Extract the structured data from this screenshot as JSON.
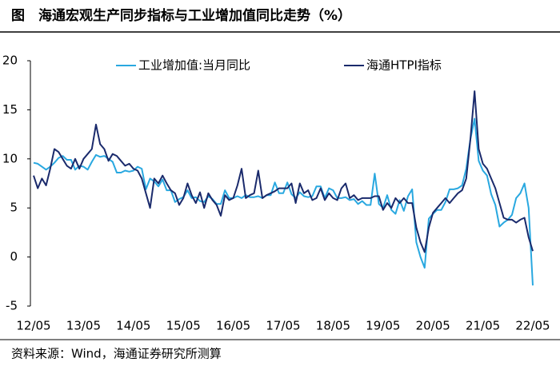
{
  "chart_data": {
    "type": "line",
    "title": "图　海通宏观生产同步指标与工业增加值同比走势（%）",
    "source": "资料来源：Wind，海通证券研究所测算",
    "categories": [
      "12/05",
      null,
      null,
      null,
      null,
      null,
      null,
      null,
      null,
      null,
      null,
      null,
      "13/05",
      null,
      null,
      null,
      null,
      null,
      null,
      null,
      null,
      null,
      null,
      null,
      "14/05",
      null,
      null,
      null,
      null,
      null,
      null,
      null,
      null,
      null,
      null,
      null,
      "15/05",
      null,
      null,
      null,
      null,
      null,
      null,
      null,
      null,
      null,
      null,
      null,
      "16/05",
      null,
      null,
      null,
      null,
      null,
      null,
      null,
      null,
      null,
      null,
      null,
      "17/05",
      null,
      null,
      null,
      null,
      null,
      null,
      null,
      null,
      null,
      null,
      null,
      "18/05",
      null,
      null,
      null,
      null,
      null,
      null,
      null,
      null,
      null,
      null,
      null,
      "19/05",
      null,
      null,
      null,
      null,
      null,
      null,
      null,
      null,
      null,
      null,
      null,
      "20/05",
      null,
      null,
      null,
      null,
      null,
      null,
      null,
      null,
      null,
      null,
      null,
      "21/05",
      null,
      null,
      null,
      null,
      null,
      null,
      null,
      null,
      null,
      null,
      null,
      "22/05"
    ],
    "series": [
      {
        "name": "工业增加值:当月同比",
        "color": "#29a8e0",
        "values": [
          9.6,
          9.5,
          9.2,
          8.9,
          9.2,
          9.6,
          10.1,
          10.3,
          9.9,
          9.9,
          8.9,
          9.3,
          9.2,
          8.9,
          9.7,
          10.4,
          10.2,
          10.3,
          10.0,
          9.7,
          8.6,
          8.6,
          8.8,
          8.7,
          8.8,
          9.2,
          9.0,
          6.9,
          8.0,
          7.7,
          7.2,
          7.9,
          6.8,
          6.8,
          5.6,
          5.9,
          6.1,
          6.8,
          6.0,
          6.1,
          5.7,
          5.6,
          6.2,
          5.9,
          5.4,
          5.4,
          6.8,
          6.0,
          6.0,
          6.2,
          6.0,
          6.3,
          6.1,
          6.1,
          6.2,
          6.0,
          6.3,
          6.3,
          7.6,
          6.5,
          6.5,
          7.6,
          6.4,
          6.0,
          6.6,
          6.2,
          6.1,
          6.2,
          7.2,
          7.2,
          6.0,
          7.0,
          6.8,
          6.0,
          6.0,
          6.1,
          5.8,
          5.9,
          5.4,
          5.7,
          5.3,
          5.3,
          8.5,
          5.4,
          5.0,
          6.3,
          4.8,
          4.4,
          5.8,
          4.7,
          6.2,
          6.9,
          1.5,
          0.0,
          -1.1,
          3.9,
          4.4,
          4.8,
          4.8,
          5.6,
          6.9,
          6.9,
          7.0,
          7.3,
          9.0,
          12.0,
          14.1,
          9.8,
          8.8,
          8.3,
          6.4,
          5.3,
          3.1,
          3.5,
          3.8,
          4.3,
          6.0,
          6.5,
          7.5,
          5.0,
          -2.9
        ]
      },
      {
        "name": "海通HTPI指标",
        "color": "#1a2a6c",
        "values": [
          8.3,
          7.0,
          8.0,
          7.3,
          9.0,
          11.0,
          10.7,
          10.0,
          9.3,
          9.0,
          10.0,
          9.0,
          10.0,
          10.5,
          11.0,
          13.5,
          11.5,
          11.0,
          9.8,
          10.5,
          10.3,
          9.8,
          9.3,
          9.5,
          9.0,
          8.8,
          8.0,
          6.5,
          5.0,
          8.0,
          7.5,
          8.3,
          7.5,
          6.8,
          6.5,
          5.3,
          6.0,
          7.5,
          6.3,
          5.5,
          6.6,
          5.0,
          6.5,
          5.8,
          5.3,
          4.2,
          6.3,
          5.8,
          6.0,
          7.3,
          9.0,
          6.0,
          6.3,
          6.5,
          8.8,
          6.0,
          6.3,
          6.5,
          6.7,
          7.0,
          7.0,
          7.0,
          7.5,
          5.5,
          7.5,
          6.5,
          6.8,
          5.8,
          6.0,
          7.0,
          5.8,
          6.5,
          6.0,
          5.8,
          7.0,
          7.5,
          6.0,
          6.3,
          5.8,
          6.0,
          6.0,
          6.0,
          6.2,
          6.2,
          4.8,
          5.5,
          5.0,
          6.0,
          5.5,
          6.0,
          5.5,
          5.5,
          3.0,
          1.5,
          0.5,
          3.0,
          4.5,
          5.0,
          5.5,
          6.0,
          5.5,
          6.0,
          6.5,
          6.8,
          8.0,
          12.0,
          16.9,
          11.0,
          9.5,
          9.0,
          8.0,
          7.0,
          5.5,
          4.0,
          3.8,
          3.8,
          3.5,
          3.8,
          4.0,
          2.0,
          0.6
        ]
      }
    ],
    "ylim": [
      -5,
      20
    ],
    "yticks": [
      -5,
      0,
      5,
      10,
      15,
      20
    ]
  }
}
